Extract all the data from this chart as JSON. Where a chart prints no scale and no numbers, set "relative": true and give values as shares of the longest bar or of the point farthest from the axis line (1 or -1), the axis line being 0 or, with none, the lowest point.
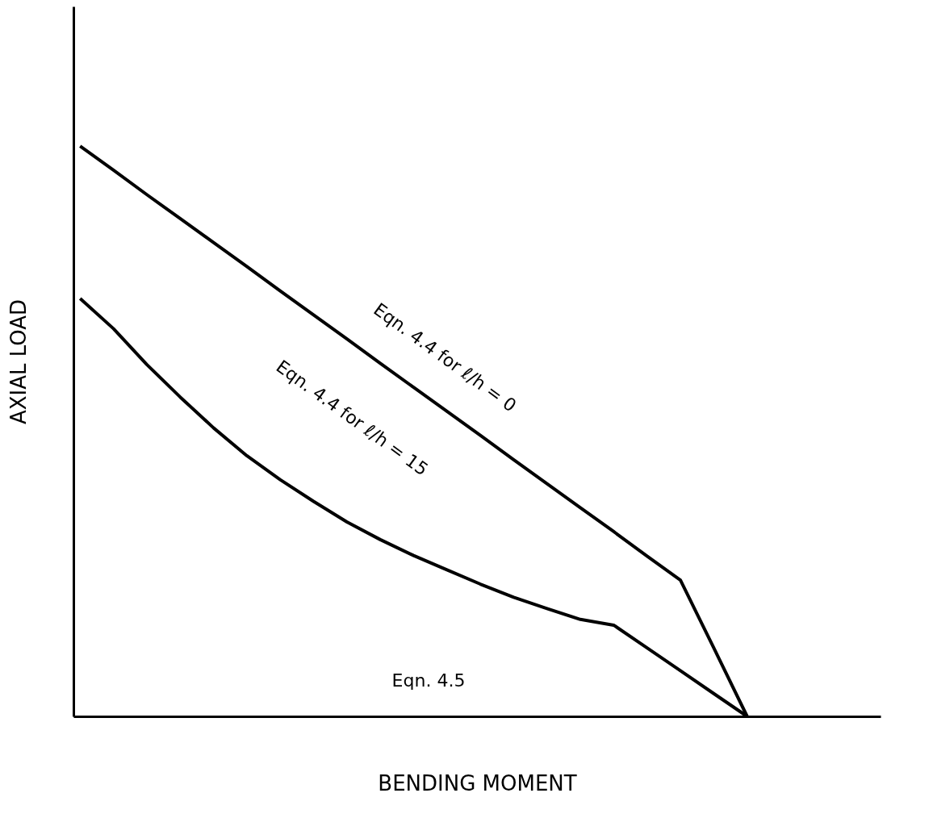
{
  "chart_data": {
    "type": "line",
    "relative": true,
    "xlabel": "BENDING MOMENT",
    "ylabel": "AXIAL LOAD",
    "grid": false,
    "marker": "none",
    "line_style": "solid",
    "tick_labels": false,
    "categories": [
      null,
      null,
      null,
      null,
      null,
      null,
      null,
      null,
      null,
      null,
      null,
      null,
      null,
      null,
      null,
      null,
      null,
      null,
      null,
      null,
      null,
      null,
      null,
      null,
      null
    ],
    "series": [
      {
        "color": "#000000",
        "values": [
          1,
          0.958,
          0.915,
          0.873,
          0.831,
          0.789,
          0.746,
          0.704,
          0.662,
          0.619,
          0.577,
          0.535,
          0.493,
          0.45,
          0.408,
          0.366,
          0.324,
          0.281,
          0.239,
          0.12,
          0,
          null,
          null,
          null,
          null
        ]
      },
      {
        "color": "#000000",
        "values": [
          0.733,
          0.68,
          0.617,
          0.56,
          0.506,
          0.457,
          0.415,
          0.377,
          0.341,
          0.31,
          0.282,
          0.257,
          0.232,
          0.209,
          0.189,
          0.17,
          0.16,
          0.12,
          0.08,
          0.04,
          0,
          null,
          null,
          null,
          null
        ]
      }
    ],
    "annotations": [
      "Eqn. 4.4 for ℓ/h = 0",
      "Eqn. 4.4 for ℓ/h = 15",
      "Eqn. 4.5"
    ]
  }
}
